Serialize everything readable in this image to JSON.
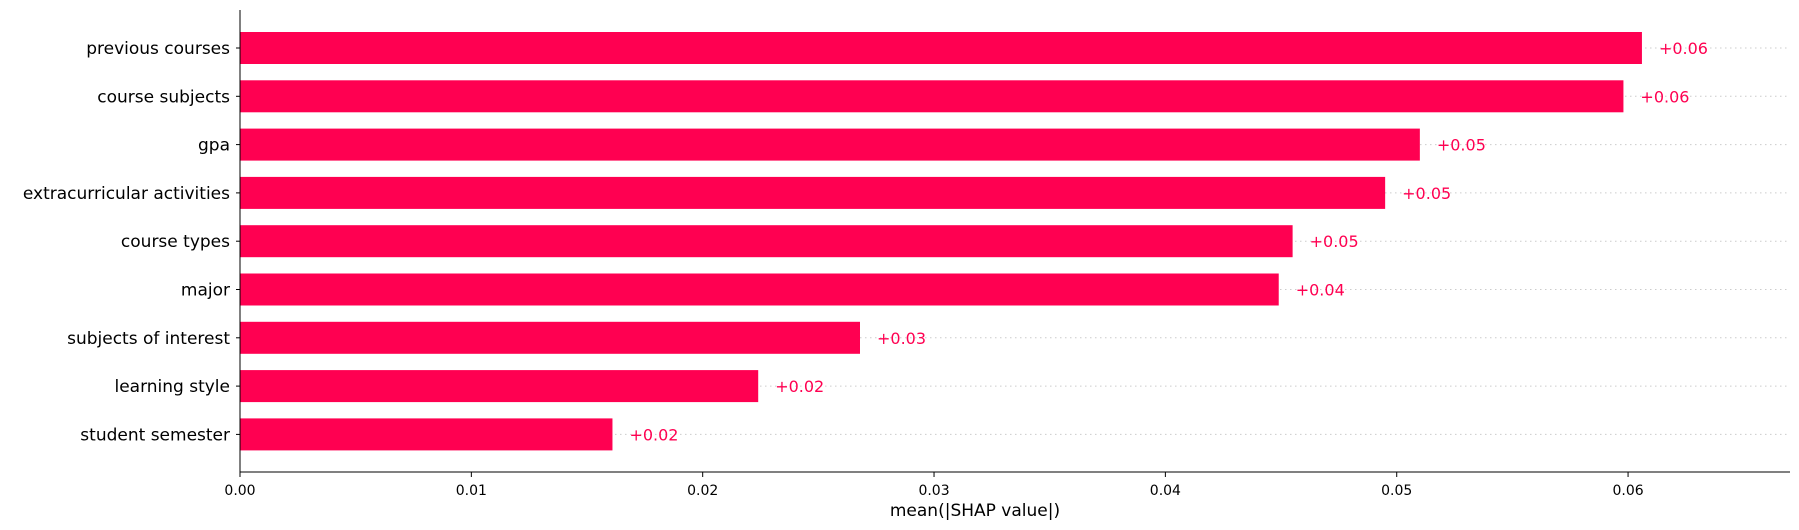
{
  "chart_data": {
    "type": "bar",
    "orientation": "horizontal",
    "categories": [
      "previous courses",
      "course subjects",
      "gpa",
      "extracurricular activities",
      "course types",
      "major",
      "subjects of interest",
      "learning style",
      "student semester"
    ],
    "values": [
      0.0606,
      0.0598,
      0.051,
      0.0495,
      0.0455,
      0.0449,
      0.0268,
      0.0224,
      0.0161
    ],
    "data_labels": [
      "+0.06",
      "+0.06",
      "+0.05",
      "+0.05",
      "+0.05",
      "+0.04",
      "+0.03",
      "+0.02",
      "+0.02"
    ],
    "xlabel": "mean(|SHAP value|)",
    "ylabel": "",
    "title": "",
    "xlim": [
      0,
      0.067
    ],
    "xticks": [
      0.0,
      0.01,
      0.02,
      0.03,
      0.04,
      0.05,
      0.06
    ],
    "xtick_labels": [
      "0.00",
      "0.01",
      "0.02",
      "0.03",
      "0.04",
      "0.05",
      "0.06"
    ],
    "grid": "dotted row lines to the right of bars",
    "bar_color": "#ff0051",
    "label_color": "#ff0051"
  }
}
